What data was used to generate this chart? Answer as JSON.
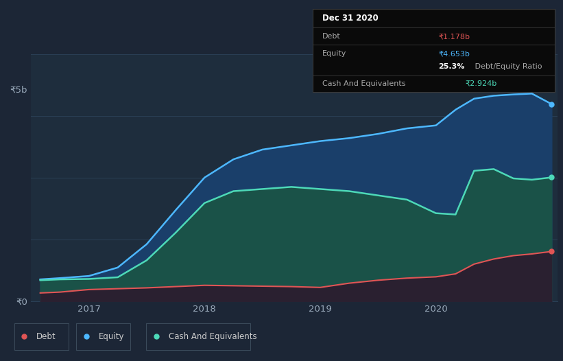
{
  "bg_color": "#1c2636",
  "chart_bg": "#1e2d3d",
  "ylim": [
    0,
    5.83
  ],
  "grid_color": "#2a3f55",
  "x_years": [
    2016.58,
    2016.75,
    2017.0,
    2017.25,
    2017.5,
    2017.75,
    2018.0,
    2018.25,
    2018.5,
    2018.75,
    2019.0,
    2019.25,
    2019.5,
    2019.75,
    2020.0,
    2020.17,
    2020.33,
    2020.5,
    2020.67,
    2020.83,
    2021.0
  ],
  "equity_values": [
    0.52,
    0.55,
    0.6,
    0.8,
    1.35,
    2.15,
    2.92,
    3.35,
    3.58,
    3.68,
    3.78,
    3.85,
    3.95,
    4.08,
    4.15,
    4.52,
    4.78,
    4.85,
    4.88,
    4.9,
    4.653
  ],
  "cash_values": [
    0.5,
    0.52,
    0.53,
    0.57,
    0.97,
    1.62,
    2.32,
    2.6,
    2.65,
    2.7,
    2.65,
    2.6,
    2.5,
    2.4,
    2.08,
    2.05,
    3.08,
    3.12,
    2.9,
    2.87,
    2.924
  ],
  "debt_values": [
    0.2,
    0.22,
    0.28,
    0.3,
    0.32,
    0.35,
    0.38,
    0.37,
    0.36,
    0.35,
    0.33,
    0.43,
    0.5,
    0.55,
    0.58,
    0.65,
    0.88,
    1.0,
    1.08,
    1.12,
    1.178
  ],
  "equity_color": "#4db8ff",
  "cash_color": "#4dd9b8",
  "debt_color": "#e05555",
  "xticks": [
    2017,
    2018,
    2019,
    2020
  ],
  "xtick_labels": [
    "2017",
    "2018",
    "2019",
    "2020"
  ],
  "legend_items": [
    {
      "label": "Debt",
      "color": "#e05555"
    },
    {
      "label": "Equity",
      "color": "#4db8ff"
    },
    {
      "label": "Cash And Equivalents",
      "color": "#4dd9b8"
    }
  ],
  "tooltip_title": "Dec 31 2020",
  "tooltip_debt": "₹1.178b",
  "tooltip_equity": "₹4.653b",
  "tooltip_ratio": "25.3%",
  "tooltip_ratio_text": " Debt/Equity Ratio",
  "tooltip_cash": "₹2.924b"
}
